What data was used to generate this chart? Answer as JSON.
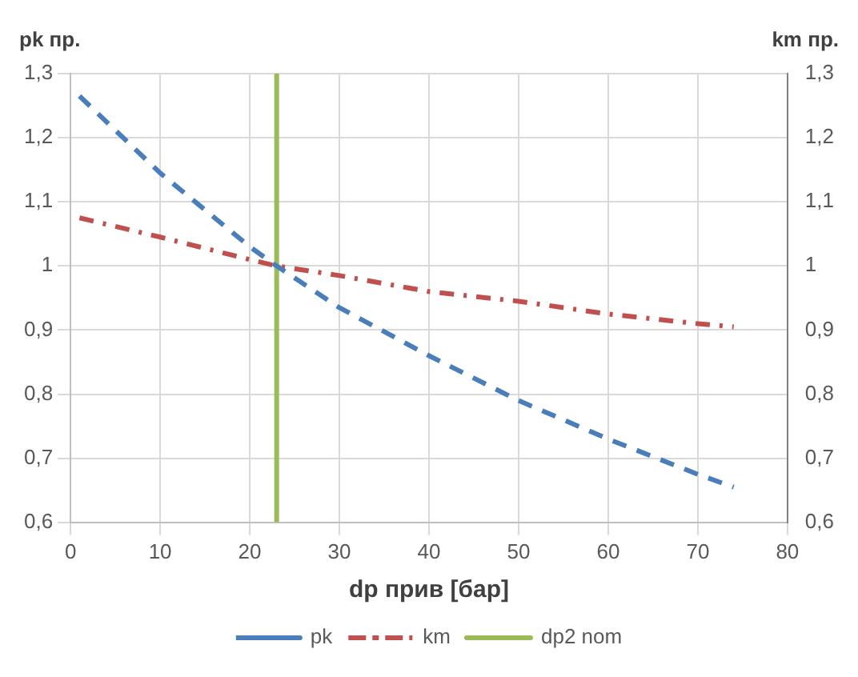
{
  "chart_data": {
    "type": "line",
    "xlabel": "dp прив [бар]",
    "ylabel": "pk пр.",
    "y2label": "km пр.",
    "xlim": [
      0,
      80
    ],
    "xticks": [
      0,
      10,
      20,
      30,
      40,
      50,
      60,
      70,
      80
    ],
    "ylim": [
      0.6,
      1.3
    ],
    "yticks": [
      {
        "value": 0.6,
        "label": "0,6"
      },
      {
        "value": 0.7,
        "label": "0,7"
      },
      {
        "value": 0.8,
        "label": "0,8"
      },
      {
        "value": 0.9,
        "label": "0,9"
      },
      {
        "value": 1,
        "label": "1"
      },
      {
        "value": 1.1,
        "label": "1,1"
      },
      {
        "value": 1.2,
        "label": "1,2"
      },
      {
        "value": 1.3,
        "label": "1,3"
      }
    ],
    "y2lim": [
      0.6,
      1.3
    ],
    "y2ticks": [
      {
        "value": 0.6,
        "label": "0,6"
      },
      {
        "value": 0.7,
        "label": "0,7"
      },
      {
        "value": 0.8,
        "label": "0,8"
      },
      {
        "value": 0.9,
        "label": "0,9"
      },
      {
        "value": 1,
        "label": "1"
      },
      {
        "value": 1.1,
        "label": "1,1"
      },
      {
        "value": 1.2,
        "label": "1,2"
      },
      {
        "value": 1.3,
        "label": "1,3"
      }
    ],
    "grid": true,
    "legend": "bottom",
    "marker": "none",
    "series": [
      {
        "name": "pk",
        "color": "#4a7ebb",
        "line_style": "dashed",
        "x": [
          1,
          10,
          20,
          23,
          30,
          40,
          50,
          60,
          70,
          74
        ],
        "values": [
          1.265,
          1.145,
          1.03,
          1.0,
          0.935,
          0.86,
          0.79,
          0.73,
          0.675,
          0.655
        ]
      },
      {
        "name": "km",
        "color": "#c0504d",
        "line_style": "dashdot",
        "axis": "y2",
        "x": [
          1,
          10,
          20,
          23,
          30,
          40,
          50,
          60,
          70,
          74
        ],
        "values": [
          1.075,
          1.045,
          1.01,
          1.0,
          0.985,
          0.96,
          0.945,
          0.925,
          0.91,
          0.905
        ]
      },
      {
        "name": "dp2 nom",
        "color": "#9bbb59",
        "line_style": "solid",
        "x": [
          23,
          23
        ],
        "values": [
          0.6,
          1.3
        ]
      }
    ]
  }
}
